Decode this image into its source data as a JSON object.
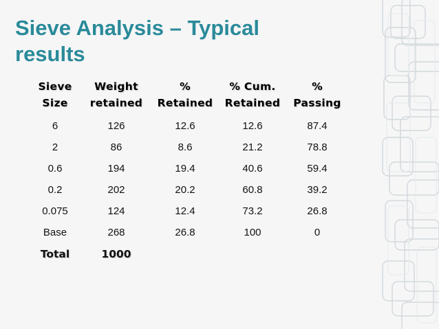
{
  "slide": {
    "title_line1": "Sieve Analysis – Typical",
    "title_line2": "results",
    "accent_color": "#2a8a9a"
  },
  "table": {
    "headers": [
      [
        "Sieve",
        "Size"
      ],
      [
        "Weight",
        "retained"
      ],
      [
        "%",
        "Retained"
      ],
      [
        "% Cum.",
        "Retained"
      ],
      [
        "%",
        "Passing"
      ]
    ],
    "rows": [
      [
        "6",
        "126",
        "12.6",
        "12.6",
        "87.4"
      ],
      [
        "2",
        "86",
        "8.6",
        "21.2",
        "78.8"
      ],
      [
        "0.6",
        "194",
        "19.4",
        "40.6",
        "59.4"
      ],
      [
        "0.2",
        "202",
        "20.2",
        "60.8",
        "39.2"
      ],
      [
        "0.075",
        "124",
        "12.4",
        "73.2",
        "26.8"
      ],
      [
        "Base",
        "268",
        "26.8",
        "100",
        "0"
      ]
    ],
    "total": [
      "Total",
      "1000",
      "",
      "",
      ""
    ]
  }
}
